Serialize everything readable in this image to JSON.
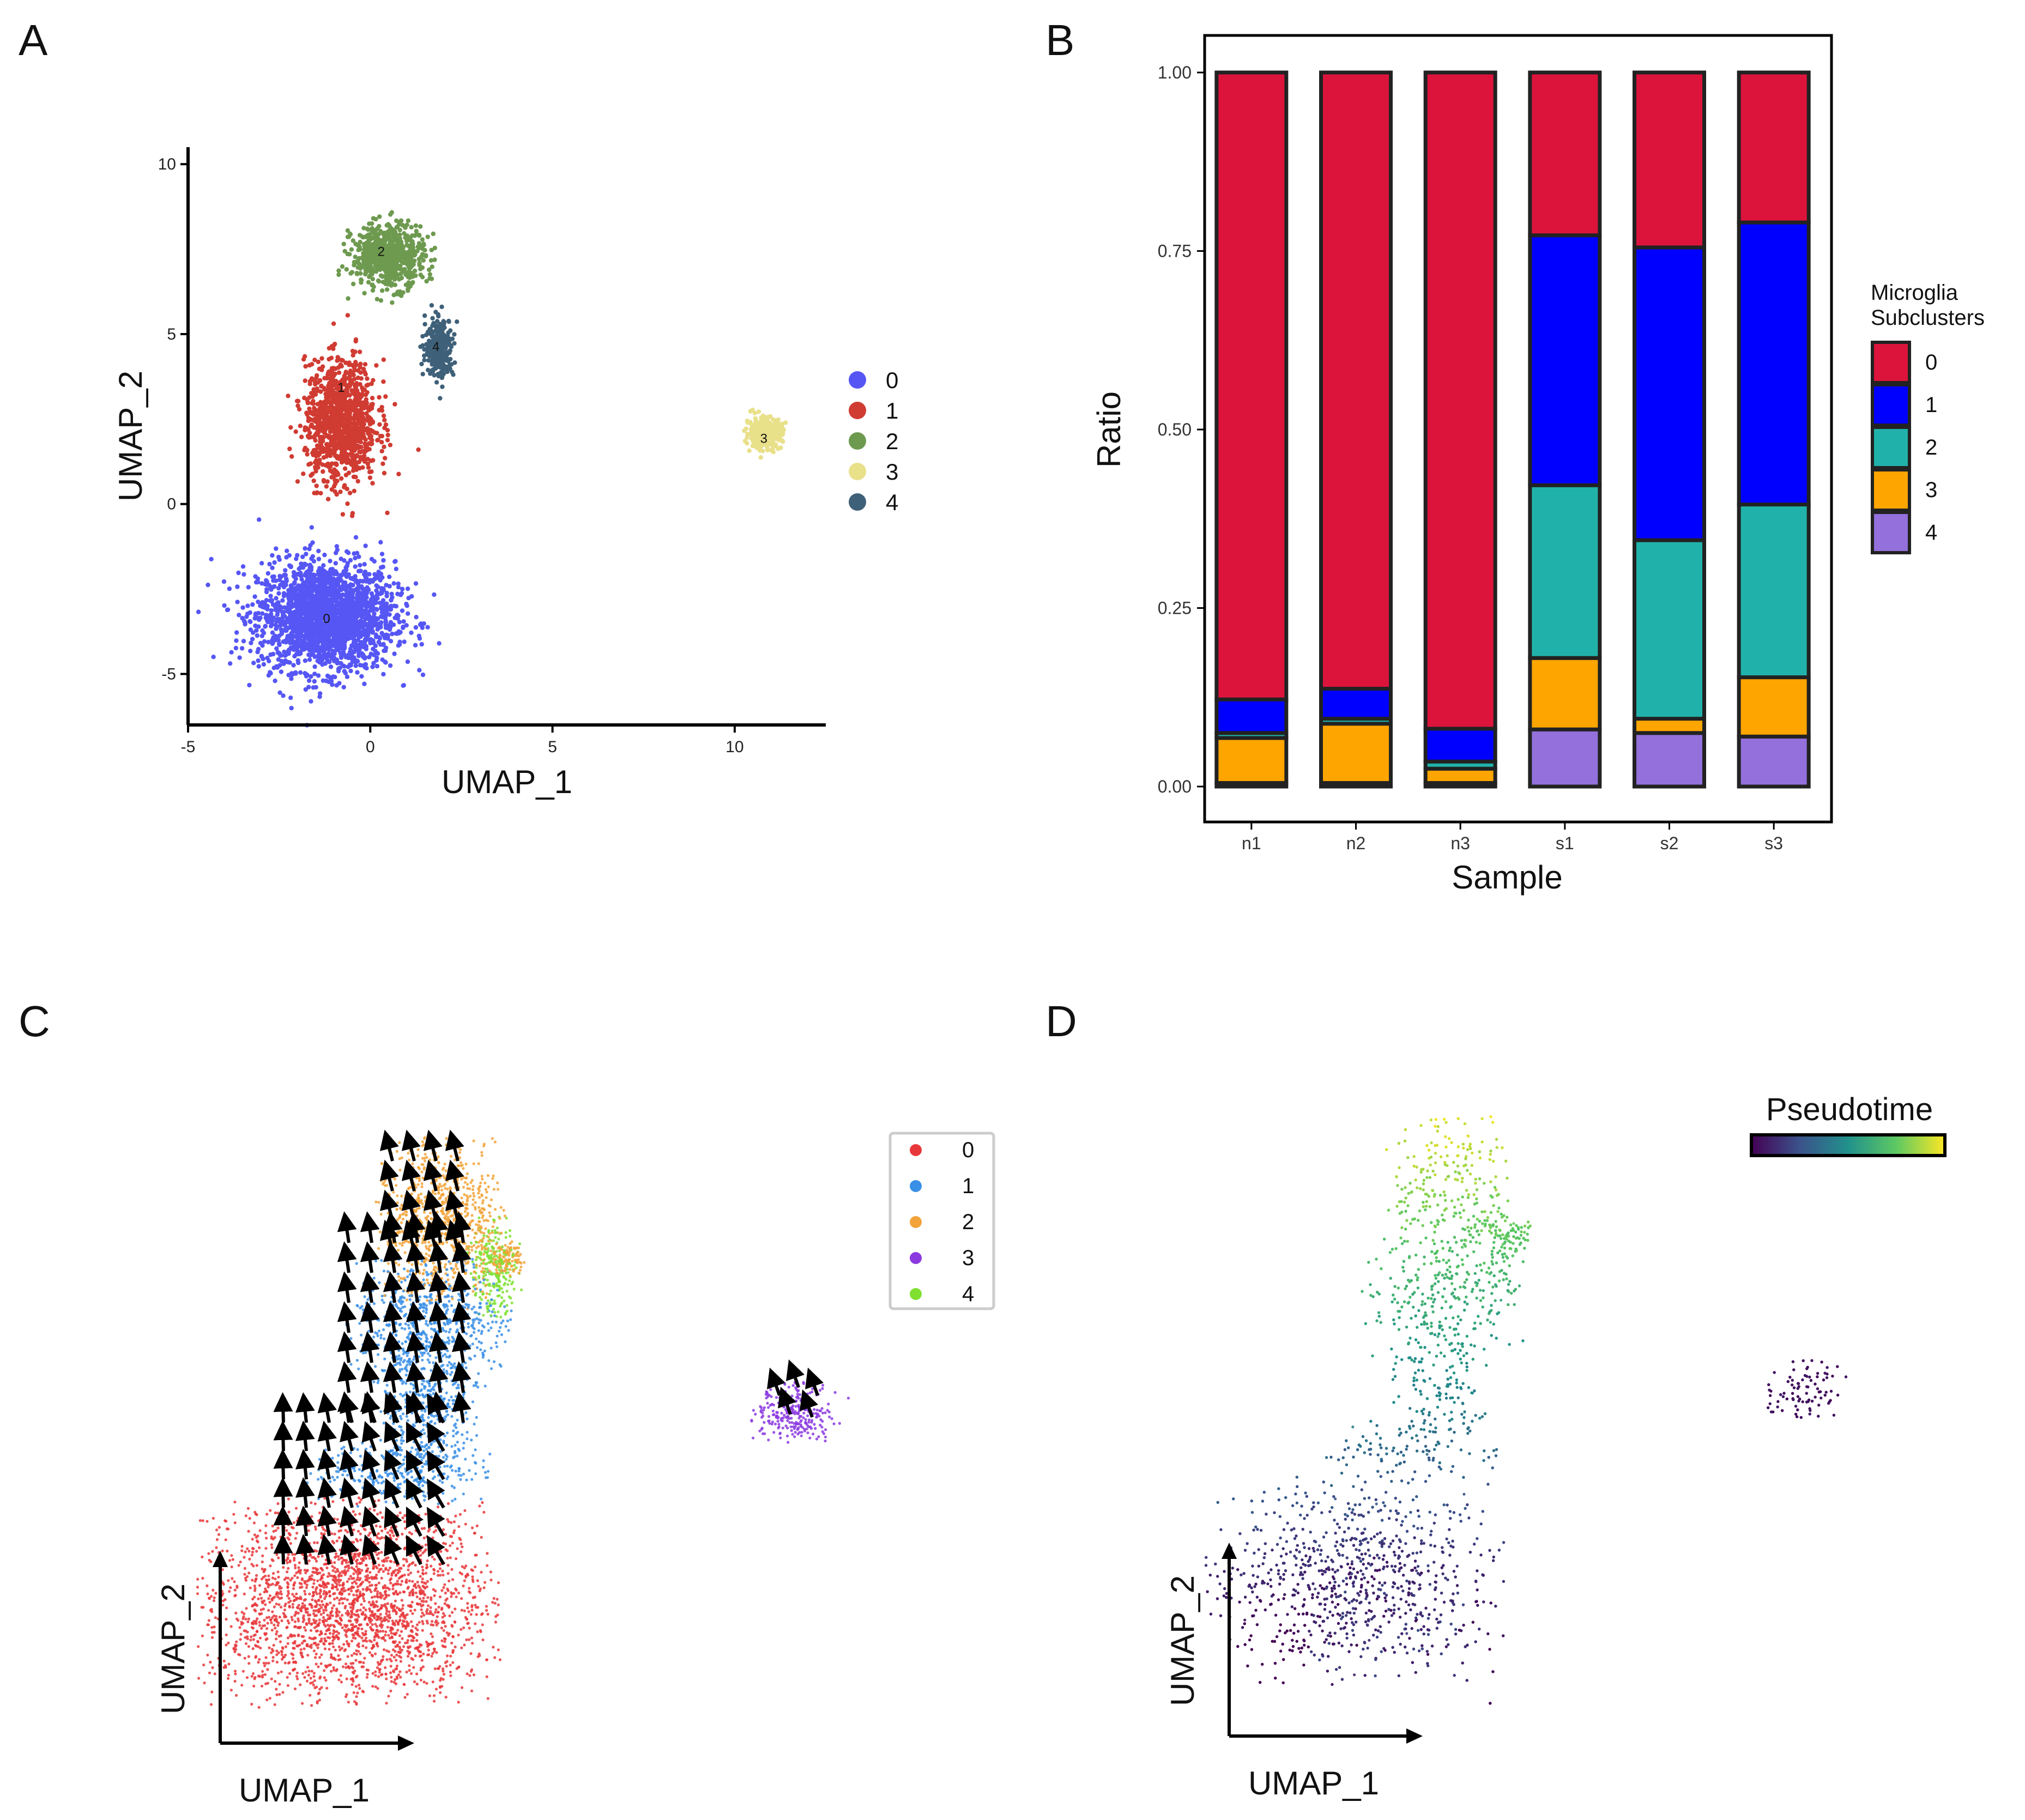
{
  "panels": {
    "a": "A",
    "b": "B",
    "c": "C",
    "d": "D"
  },
  "chart_data": [
    {
      "type": "scatter",
      "panel": "A",
      "title": "",
      "xlabel": "UMAP_1",
      "ylabel": "UMAP_2",
      "xlim": [
        -5,
        12.5
      ],
      "ylim": [
        -6.5,
        10.5
      ],
      "xticks": [
        "-5",
        "0",
        "5",
        "10"
      ],
      "yticks": [
        "-5",
        "0",
        "5",
        "10"
      ],
      "legend_placement": "right",
      "series": [
        {
          "name": "0",
          "color": "#5656f5",
          "center": [
            -1.2,
            -3.3
          ],
          "spread": [
            1.7,
            1.45
          ],
          "count": 2200
        },
        {
          "name": "1",
          "color": "#d03b32",
          "center": [
            -0.8,
            2.4
          ],
          "spread": [
            0.9,
            1.6
          ],
          "count": 1100
        },
        {
          "name": "2",
          "color": "#6e9a50",
          "center": [
            0.5,
            7.3
          ],
          "spread": [
            0.9,
            0.85
          ],
          "count": 650
        },
        {
          "name": "3",
          "color": "#e9e08a",
          "center": [
            10.8,
            2.1
          ],
          "spread": [
            0.45,
            0.4
          ],
          "count": 320
        },
        {
          "name": "4",
          "color": "#3f6079",
          "center": [
            1.9,
            4.6
          ],
          "spread": [
            0.35,
            0.8
          ],
          "count": 300
        }
      ],
      "cluster_labels": [
        {
          "text": "0",
          "x": -1.2,
          "y": -3.5
        },
        {
          "text": "1",
          "x": -0.8,
          "y": 3.3
        },
        {
          "text": "2",
          "x": 0.3,
          "y": 7.3
        },
        {
          "text": "3",
          "x": 10.8,
          "y": 1.8
        },
        {
          "text": "4",
          "x": 1.8,
          "y": 4.5
        }
      ]
    },
    {
      "type": "bar",
      "stacked": true,
      "panel": "B",
      "title": "",
      "xlabel": "Sample",
      "ylabel": "Ratio",
      "ylim": [
        0,
        1
      ],
      "yticks": [
        "0.00",
        "0.25",
        "0.50",
        "0.75",
        "1.00"
      ],
      "categories": [
        "n1",
        "n2",
        "n3",
        "s1",
        "s2",
        "s3"
      ],
      "legend_title": [
        "Microglia",
        "Subclusters"
      ],
      "legend_placement": "right",
      "series": [
        {
          "name": "4",
          "color": "#9370db",
          "values": [
            0.005,
            0.005,
            0.005,
            0.08,
            0.075,
            0.07
          ]
        },
        {
          "name": "3",
          "color": "#ffa500",
          "values": [
            0.063,
            0.083,
            0.02,
            0.1,
            0.02,
            0.083
          ]
        },
        {
          "name": "2",
          "color": "#20b2aa",
          "values": [
            0.007,
            0.007,
            0.01,
            0.242,
            0.25,
            0.242
          ]
        },
        {
          "name": "1",
          "color": "#0000ff",
          "values": [
            0.047,
            0.042,
            0.046,
            0.35,
            0.41,
            0.395
          ]
        },
        {
          "name": "0",
          "color": "#dc143c",
          "values": [
            0.878,
            0.863,
            0.919,
            0.228,
            0.245,
            0.21
          ]
        }
      ]
    },
    {
      "type": "scatter",
      "panel": "C",
      "title": "",
      "xlabel": "UMAP_1",
      "ylabel": "UMAP_2",
      "arrows": "RNA velocity arrows (black), general flow upward from cluster 0 toward cluster 2",
      "legend_placement": "top-right",
      "series": [
        {
          "name": "0",
          "color": "#e8373a"
        },
        {
          "name": "1",
          "color": "#3a8fe6"
        },
        {
          "name": "2",
          "color": "#f2a33a"
        },
        {
          "name": "3",
          "color": "#8b3ae0"
        },
        {
          "name": "4",
          "color": "#7fe032"
        }
      ]
    },
    {
      "type": "scatter",
      "panel": "D",
      "title": "",
      "xlabel": "UMAP_1",
      "ylabel": "UMAP_2",
      "colorbar_label": "Pseudotime",
      "colormap": [
        "#440154",
        "#3b528b",
        "#21918c",
        "#5ec962",
        "#fde725"
      ],
      "legend_placement": "top-right"
    }
  ]
}
